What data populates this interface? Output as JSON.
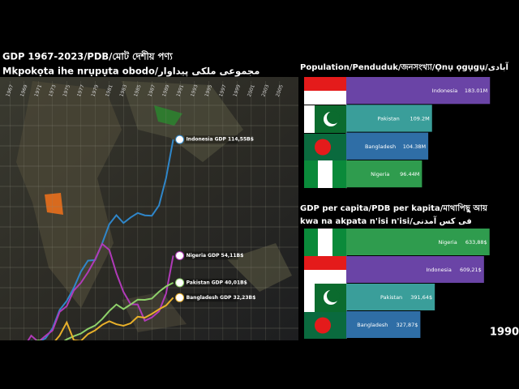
{
  "chart_data": [
    {
      "type": "line",
      "title": "GDP 1967-2023/PDB/মোট দেশীয় পণ্য",
      "subtitle": "Mkpokọta ihe nrụpụta obodo/مجموعی ملکی پیداوار",
      "x": [
        1967,
        1968,
        1969,
        1970,
        1971,
        1972,
        1973,
        1974,
        1975,
        1976,
        1977,
        1978,
        1979,
        1980,
        1981,
        1982,
        1983,
        1984,
        1985,
        1986,
        1987,
        1988,
        1989,
        1990
      ],
      "xlim": [
        1965.6,
        2007.3
      ],
      "xticks": [
        1967,
        1969,
        1971,
        1973,
        1975,
        1977,
        1979,
        1981,
        1983,
        1985,
        1987,
        1989,
        1991,
        1993,
        1995,
        1997,
        1999,
        2001,
        2003,
        2005
      ],
      "ylim": [
        10,
        145
      ],
      "series": [
        {
          "name": "Indonesia",
          "color": "#2f86c9",
          "end_label": "Indonesia GDP 114,55B$",
          "values": [
            5.7,
            7.1,
            8.4,
            9.7,
            9.3,
            11.0,
            16.3,
            25.8,
            30.5,
            37.3,
            45.8,
            51.5,
            51.8,
            60.5,
            70.5,
            75.2,
            71.1,
            74.0,
            76.3,
            75.1,
            74.9,
            80.3,
            94.5,
            114.55
          ]
        },
        {
          "name": "Nigeria",
          "color": "#b03ab8",
          "end_label": "Nigeria GDP 54,11B$",
          "values": [
            5.2,
            5.2,
            6.6,
            12.5,
            9.2,
            12.3,
            15.2,
            24.8,
            27.8,
            36.0,
            40.0,
            45.5,
            52.2,
            60.2,
            57.1,
            45.0,
            35.2,
            28.8,
            28.7,
            20.2,
            22.0,
            25.1,
            34.4,
            54.11
          ]
        },
        {
          "name": "Pakistan",
          "color": "#8ed16a",
          "end_label": "Pakistan GDP 40,01B$",
          "values": [
            6.8,
            7.3,
            7.8,
            9.1,
            10.0,
            9.3,
            6.3,
            8.0,
            10.5,
            12.2,
            13.6,
            16.0,
            17.7,
            21.1,
            25.3,
            28.7,
            26.3,
            28.7,
            31.2,
            31.1,
            31.8,
            35.3,
            38.1,
            40.01
          ]
        },
        {
          "name": "Bangladesh",
          "color": "#e8b02a",
          "end_label": "Bangladesh GDP 32,23B$",
          "values": [
            5.9,
            6.4,
            6.8,
            8.0,
            8.9,
            6.3,
            8.1,
            12.5,
            19.4,
            10.1,
            9.7,
            13.3,
            15.2,
            18.1,
            20.0,
            18.4,
            17.6,
            18.9,
            22.3,
            21.8,
            23.8,
            26.2,
            28.2,
            32.23
          ]
        }
      ]
    },
    {
      "type": "hbar",
      "title": "Population/Penduduk/জনসংখ্যা/Ọnụ ọgụgụ/آبادی",
      "categories": [
        "Indonesia",
        "Pakistan",
        "Bangladesh",
        "Nigeria"
      ],
      "values": [
        183.01,
        109.2,
        104.38,
        96.44
      ],
      "value_labels": [
        "183.01M",
        "109.2M",
        "104.38M",
        "96.44M"
      ],
      "colors": [
        "#6a44a6",
        "#3a9e9a",
        "#2f6ea6",
        "#2f9c4e"
      ],
      "xlim": [
        0,
        190
      ]
    },
    {
      "type": "hbar",
      "title": "GDP per capita/PDB per kapita/মাথাপিছু আয়",
      "subtitle": "kwa na akpata n'isi n'isi/فی کس آمدنی",
      "categories": [
        "Nigeria",
        "Indonesia",
        "Pakistan",
        "Bangladesh"
      ],
      "values": [
        633.88,
        609.21,
        391.64,
        327.87
      ],
      "value_labels": [
        "633,88$",
        "609,21$",
        "391,64$",
        "327,87$"
      ],
      "colors": [
        "#2f9c4e",
        "#6a44a6",
        "#3a9e9a",
        "#2f6ea6"
      ],
      "xlim": [
        0,
        660
      ]
    },
    {
      "type": "label",
      "year": "1990"
    }
  ]
}
